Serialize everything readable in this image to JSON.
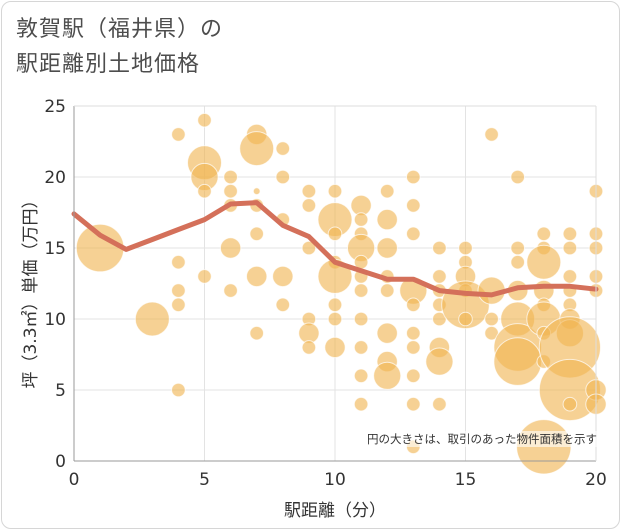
{
  "title_line1": "敦賀駅（福井県）の",
  "title_line2": "駅距離別土地価格",
  "note": "円の大きさは、取引のあった物件面積を示す",
  "chart_data": {
    "type": "scatter",
    "title": "敦賀駅（福井県）の駅距離別土地価格",
    "xlabel": "駅距離（分）",
    "ylabel": "坪（3.3㎡）単価（万円）",
    "xlim": [
      0,
      20
    ],
    "ylim": [
      0,
      25
    ],
    "xticks": [
      0,
      5,
      10,
      15,
      20
    ],
    "yticks": [
      0,
      5,
      10,
      15,
      20,
      25
    ],
    "grid": true,
    "bubble_color": "#f0b552",
    "line_color": "#d4705a",
    "points": [
      [
        1,
        15,
        7
      ],
      [
        3,
        10,
        5
      ],
      [
        4,
        23,
        2
      ],
      [
        4,
        14,
        2
      ],
      [
        4,
        12,
        2
      ],
      [
        4,
        11,
        2
      ],
      [
        4,
        5,
        2
      ],
      [
        5,
        24,
        2
      ],
      [
        5,
        21,
        5
      ],
      [
        5,
        20,
        4
      ],
      [
        5,
        19,
        2
      ],
      [
        5,
        13,
        2
      ],
      [
        6,
        20,
        2
      ],
      [
        6,
        19,
        2
      ],
      [
        6,
        18,
        2
      ],
      [
        6,
        15,
        3
      ],
      [
        6,
        12,
        2
      ],
      [
        7,
        23,
        3
      ],
      [
        7,
        22,
        5
      ],
      [
        7,
        19,
        1
      ],
      [
        7,
        18,
        2
      ],
      [
        7,
        16,
        2
      ],
      [
        7,
        13,
        3
      ],
      [
        7,
        9,
        2
      ],
      [
        8,
        22,
        2
      ],
      [
        8,
        20,
        2
      ],
      [
        8,
        17,
        2
      ],
      [
        8,
        13,
        3
      ],
      [
        8,
        11,
        2
      ],
      [
        9,
        19,
        2
      ],
      [
        9,
        18,
        2
      ],
      [
        9,
        15,
        2
      ],
      [
        9,
        10,
        2
      ],
      [
        9,
        9,
        3
      ],
      [
        9,
        8,
        2
      ],
      [
        10,
        19,
        2
      ],
      [
        10,
        17,
        5
      ],
      [
        10,
        16,
        2
      ],
      [
        10,
        14,
        2
      ],
      [
        10,
        13,
        5
      ],
      [
        10,
        11,
        2
      ],
      [
        10,
        10,
        2
      ],
      [
        10,
        8,
        3
      ],
      [
        11,
        18,
        3
      ],
      [
        11,
        17,
        2
      ],
      [
        11,
        16,
        2
      ],
      [
        11,
        15,
        4
      ],
      [
        11,
        14,
        2
      ],
      [
        11,
        13,
        2
      ],
      [
        11,
        12,
        2
      ],
      [
        11,
        10,
        2
      ],
      [
        11,
        8,
        2
      ],
      [
        11,
        6,
        2
      ],
      [
        11,
        4,
        2
      ],
      [
        12,
        19,
        2
      ],
      [
        12,
        17,
        3
      ],
      [
        12,
        15,
        3
      ],
      [
        12,
        13,
        2
      ],
      [
        12,
        12,
        2
      ],
      [
        12,
        9,
        3
      ],
      [
        12,
        7,
        3
      ],
      [
        12,
        6,
        4
      ],
      [
        13,
        20,
        2
      ],
      [
        13,
        18,
        2
      ],
      [
        13,
        16,
        2
      ],
      [
        13,
        12,
        4
      ],
      [
        13,
        11,
        2
      ],
      [
        13,
        9,
        2
      ],
      [
        13,
        8,
        2
      ],
      [
        13,
        6,
        2
      ],
      [
        13,
        4,
        2
      ],
      [
        13,
        1,
        2
      ],
      [
        14,
        15,
        2
      ],
      [
        14,
        13,
        2
      ],
      [
        14,
        12,
        2
      ],
      [
        14,
        11,
        2
      ],
      [
        14,
        10,
        2
      ],
      [
        14,
        8,
        3
      ],
      [
        14,
        7,
        4
      ],
      [
        14,
        4,
        2
      ],
      [
        15,
        15,
        2
      ],
      [
        15,
        14,
        2
      ],
      [
        15,
        13,
        3
      ],
      [
        15,
        12,
        2
      ],
      [
        15,
        11,
        7
      ],
      [
        15,
        10,
        2
      ],
      [
        16,
        23,
        2
      ],
      [
        16,
        12,
        4
      ],
      [
        16,
        10,
        2
      ],
      [
        16,
        9,
        2
      ],
      [
        17,
        20,
        2
      ],
      [
        17,
        15,
        2
      ],
      [
        17,
        14,
        2
      ],
      [
        17,
        12,
        3
      ],
      [
        17,
        10,
        5
      ],
      [
        17,
        8,
        7
      ],
      [
        17,
        7,
        7
      ],
      [
        18,
        16,
        2
      ],
      [
        18,
        15,
        2
      ],
      [
        18,
        14,
        5
      ],
      [
        18,
        12,
        3
      ],
      [
        18,
        11,
        2
      ],
      [
        18,
        10,
        5
      ],
      [
        18,
        9,
        2
      ],
      [
        18,
        7,
        2
      ],
      [
        18,
        1,
        8
      ],
      [
        19,
        16,
        2
      ],
      [
        19,
        15,
        2
      ],
      [
        19,
        13,
        2
      ],
      [
        19,
        12,
        2
      ],
      [
        19,
        11,
        2
      ],
      [
        19,
        10,
        3
      ],
      [
        19,
        9,
        4
      ],
      [
        19,
        8,
        9
      ],
      [
        19,
        5,
        9
      ],
      [
        19,
        4,
        2
      ],
      [
        20,
        19,
        2
      ],
      [
        20,
        16,
        2
      ],
      [
        20,
        15,
        2
      ],
      [
        20,
        13,
        2
      ],
      [
        20,
        12,
        2
      ],
      [
        20,
        5,
        3
      ],
      [
        20,
        4,
        3
      ]
    ],
    "trend": {
      "x": [
        0,
        1,
        2,
        3,
        4,
        5,
        6,
        7,
        8,
        9,
        10,
        11,
        12,
        13,
        14,
        15,
        16,
        17,
        18,
        19,
        20
      ],
      "y": [
        17.4,
        15.9,
        14.9,
        15.6,
        16.3,
        17.0,
        18.1,
        18.2,
        16.6,
        15.8,
        14.0,
        13.4,
        12.8,
        12.8,
        12.0,
        11.8,
        11.7,
        12.2,
        12.3,
        12.3,
        12.1
      ]
    }
  }
}
